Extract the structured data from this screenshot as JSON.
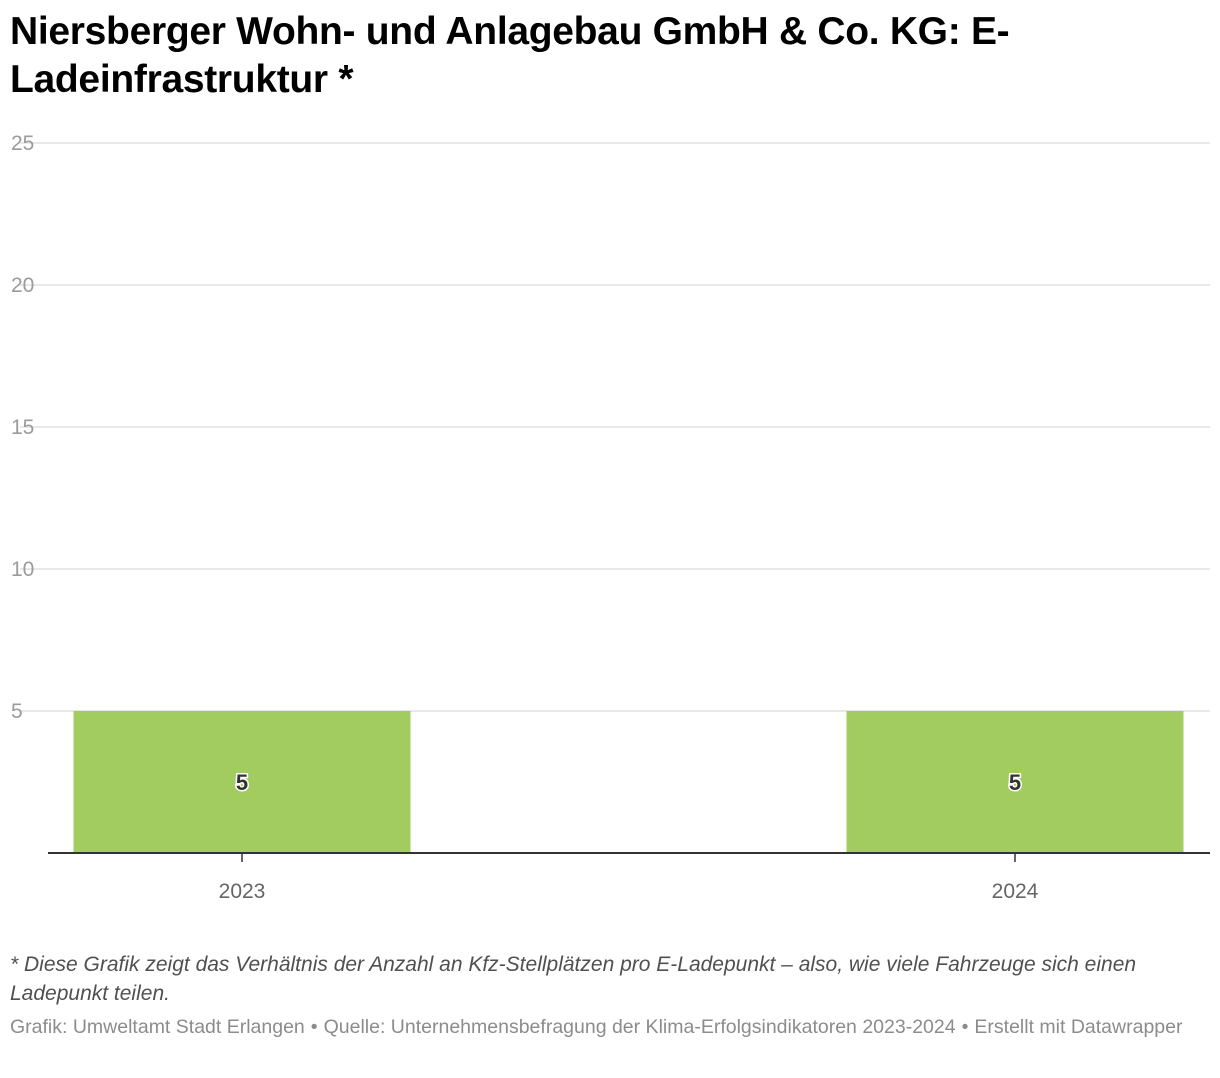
{
  "title": "Niersberger Wohn- und Anlagebau GmbH & Co. KG: E-Ladeinfrastruktur *",
  "chart_data": {
    "type": "bar",
    "categories": [
      "2023",
      "2024"
    ],
    "values": [
      5,
      5
    ],
    "ylim": [
      0,
      25
    ],
    "yticks": [
      5,
      10,
      15,
      20,
      25
    ],
    "grid": true,
    "xlabel": "",
    "ylabel": "",
    "bar_color": "#a2cc60"
  },
  "note": "* Diese Grafik zeigt das Verhältnis der Anzahl an Kfz-Stellplätzen pro E-Ladepunkt – also, wie viele Fahrzeuge sich einen Ladepunkt teilen.",
  "footer": {
    "credit": "Grafik: Umweltamt Stadt Erlangen",
    "source": "Quelle: Unternehmensbefragung der Klima-Erfolgsindikatoren 2023-2024",
    "made_with": "Erstellt mit Datawrapper",
    "separator": "•"
  }
}
